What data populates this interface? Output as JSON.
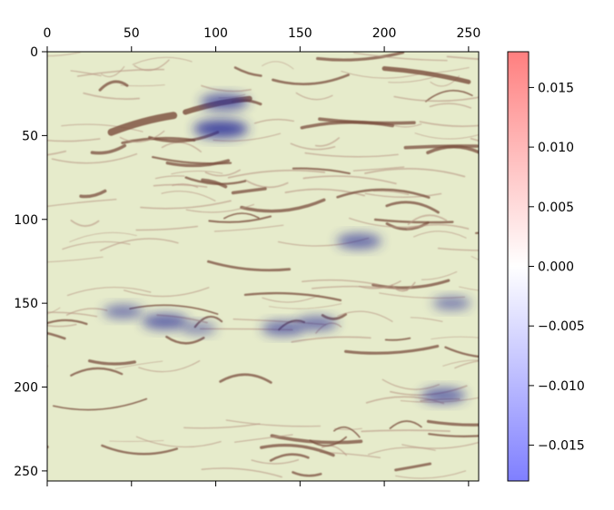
{
  "chart_data": {
    "type": "heatmap",
    "title": "",
    "xlabel": "",
    "ylabel": "",
    "xlim": [
      0,
      256
    ],
    "ylim": [
      256,
      0
    ],
    "x_ticks": [
      "0",
      "50",
      "100",
      "150",
      "200",
      "250"
    ],
    "x_tick_values": [
      0,
      50,
      100,
      150,
      200,
      250
    ],
    "y_ticks": [
      "0",
      "50",
      "100",
      "150",
      "200",
      "250"
    ],
    "y_tick_values": [
      0,
      50,
      100,
      150,
      200,
      250
    ],
    "colorbar": {
      "colormap": "bwr",
      "vmin": -0.018,
      "vmax": 0.018,
      "ticks": [
        "0.015",
        "0.010",
        "0.005",
        "0.000",
        "−0.005",
        "−0.010",
        "−0.015"
      ],
      "tick_values": [
        0.015,
        0.01,
        0.005,
        0.0,
        -0.005,
        -0.01,
        -0.015
      ]
    },
    "background_image": "pale green background with brown calligraphic brush strokes",
    "overlay_highlights": [
      {
        "x": 105,
        "y": 30,
        "intensity": -0.014
      },
      {
        "x": 103,
        "y": 46,
        "intensity": -0.018
      },
      {
        "x": 185,
        "y": 113,
        "intensity": -0.012
      },
      {
        "x": 70,
        "y": 161,
        "intensity": -0.013
      },
      {
        "x": 45,
        "y": 155,
        "intensity": -0.009
      },
      {
        "x": 140,
        "y": 165,
        "intensity": -0.011
      },
      {
        "x": 160,
        "y": 162,
        "intensity": -0.01
      },
      {
        "x": 235,
        "y": 205,
        "intensity": -0.012
      },
      {
        "x": 240,
        "y": 150,
        "intensity": -0.008
      },
      {
        "x": 90,
        "y": 165,
        "intensity": -0.006
      }
    ],
    "colors": {
      "background": "#e6ebcb",
      "stroke_dark": "#7a4e3c",
      "stroke_light": "#b89484",
      "highlight": "#2a2f9a"
    }
  }
}
